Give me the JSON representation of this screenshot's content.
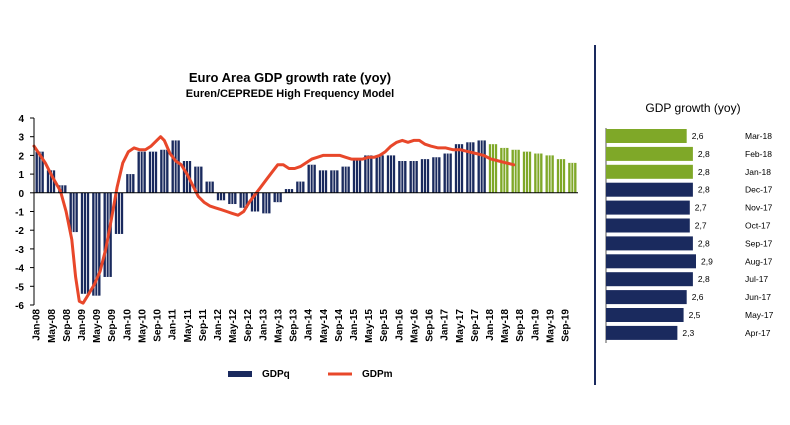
{
  "chart_data": [
    {
      "type": "bar+line",
      "title": "Euro Area GDP growth rate (yoy)",
      "subtitle": "Euren/CEPREDE  High Frequency Model",
      "ylim": [
        -6,
        4
      ],
      "yticks": [
        4,
        3,
        2,
        1,
        0,
        -1,
        -2,
        -3,
        -4,
        -5,
        -6
      ],
      "xtick_labels": [
        "Jan-08",
        "May-08",
        "Sep-08",
        "Jan-09",
        "May-09",
        "Sep-09",
        "Jan-10",
        "May-10",
        "Sep-10",
        "Jan-11",
        "May-11",
        "Sep-11",
        "Jan-12",
        "May-12",
        "Sep-12",
        "Jan-13",
        "May-13",
        "Sep-13",
        "Jan-14",
        "May-14",
        "Sep-14",
        "Jan-15",
        "May-15",
        "Sep-15",
        "Jan-16",
        "May-16",
        "Sep-16",
        "Jan-17",
        "May-17",
        "Sep-17",
        "Jan-18",
        "May-18",
        "Sep-18",
        "Jan-19",
        "May-19",
        "Sep-19"
      ],
      "bar_series_name": "GDPq",
      "line_series_name": "GDPm",
      "bar_color": "#1a2a5e",
      "forecast_bar_color": "#7fa828",
      "line_color": "#e8472a",
      "bars": [
        {
          "x": "2008-Q1",
          "value": 2.2,
          "forecast": false
        },
        {
          "x": "2008-Q2",
          "value": 1.2,
          "forecast": false
        },
        {
          "x": "2008-Q3",
          "value": 0.4,
          "forecast": false
        },
        {
          "x": "2008-Q4",
          "value": -2.1,
          "forecast": false
        },
        {
          "x": "2009-Q1",
          "value": -5.4,
          "forecast": false
        },
        {
          "x": "2009-Q2",
          "value": -5.5,
          "forecast": false
        },
        {
          "x": "2009-Q3",
          "value": -4.5,
          "forecast": false
        },
        {
          "x": "2009-Q4",
          "value": -2.2,
          "forecast": false
        },
        {
          "x": "2010-Q1",
          "value": 1.0,
          "forecast": false
        },
        {
          "x": "2010-Q2",
          "value": 2.2,
          "forecast": false
        },
        {
          "x": "2010-Q3",
          "value": 2.2,
          "forecast": false
        },
        {
          "x": "2010-Q4",
          "value": 2.3,
          "forecast": false
        },
        {
          "x": "2011-Q1",
          "value": 2.8,
          "forecast": false
        },
        {
          "x": "2011-Q2",
          "value": 1.7,
          "forecast": false
        },
        {
          "x": "2011-Q3",
          "value": 1.4,
          "forecast": false
        },
        {
          "x": "2011-Q4",
          "value": 0.6,
          "forecast": false
        },
        {
          "x": "2012-Q1",
          "value": -0.4,
          "forecast": false
        },
        {
          "x": "2012-Q2",
          "value": -0.6,
          "forecast": false
        },
        {
          "x": "2012-Q3",
          "value": -0.8,
          "forecast": false
        },
        {
          "x": "2012-Q4",
          "value": -1.0,
          "forecast": false
        },
        {
          "x": "2013-Q1",
          "value": -1.1,
          "forecast": false
        },
        {
          "x": "2013-Q2",
          "value": -0.5,
          "forecast": false
        },
        {
          "x": "2013-Q3",
          "value": 0.2,
          "forecast": false
        },
        {
          "x": "2013-Q4",
          "value": 0.6,
          "forecast": false
        },
        {
          "x": "2014-Q1",
          "value": 1.5,
          "forecast": false
        },
        {
          "x": "2014-Q2",
          "value": 1.2,
          "forecast": false
        },
        {
          "x": "2014-Q3",
          "value": 1.2,
          "forecast": false
        },
        {
          "x": "2014-Q4",
          "value": 1.4,
          "forecast": false
        },
        {
          "x": "2015-Q1",
          "value": 1.8,
          "forecast": false
        },
        {
          "x": "2015-Q2",
          "value": 2.0,
          "forecast": false
        },
        {
          "x": "2015-Q3",
          "value": 2.0,
          "forecast": false
        },
        {
          "x": "2015-Q4",
          "value": 2.0,
          "forecast": false
        },
        {
          "x": "2016-Q1",
          "value": 1.7,
          "forecast": false
        },
        {
          "x": "2016-Q2",
          "value": 1.7,
          "forecast": false
        },
        {
          "x": "2016-Q3",
          "value": 1.8,
          "forecast": false
        },
        {
          "x": "2016-Q4",
          "value": 1.9,
          "forecast": false
        },
        {
          "x": "2017-Q1",
          "value": 2.1,
          "forecast": false
        },
        {
          "x": "2017-Q2",
          "value": 2.6,
          "forecast": false
        },
        {
          "x": "2017-Q3",
          "value": 2.7,
          "forecast": false
        },
        {
          "x": "2017-Q4",
          "value": 2.8,
          "forecast": false
        },
        {
          "x": "2018-Q1",
          "value": 2.6,
          "forecast": true
        },
        {
          "x": "2018-Q2",
          "value": 2.4,
          "forecast": true
        },
        {
          "x": "2018-Q3",
          "value": 2.3,
          "forecast": true
        },
        {
          "x": "2018-Q4",
          "value": 2.2,
          "forecast": true
        },
        {
          "x": "2019-Q1",
          "value": 2.1,
          "forecast": true
        },
        {
          "x": "2019-Q2",
          "value": 2.0,
          "forecast": true
        },
        {
          "x": "2019-Q3",
          "value": 1.8,
          "forecast": true
        },
        {
          "x": "2019-Q4",
          "value": 1.6,
          "forecast": true
        }
      ],
      "line_points": [
        [
          0,
          2.5
        ],
        [
          3,
          1.6
        ],
        [
          5,
          0.8
        ],
        [
          7,
          0.1
        ],
        [
          8.5,
          -1.0
        ],
        [
          10,
          -2.5
        ],
        [
          11,
          -4.5
        ],
        [
          12,
          -5.8
        ],
        [
          13,
          -5.9
        ],
        [
          14.5,
          -5.4
        ],
        [
          16,
          -4.9
        ],
        [
          17.5,
          -4.2
        ],
        [
          19,
          -3.0
        ],
        [
          20.5,
          -1.4
        ],
        [
          22,
          0.3
        ],
        [
          23.5,
          1.6
        ],
        [
          25,
          2.2
        ],
        [
          26.5,
          2.4
        ],
        [
          28,
          2.3
        ],
        [
          29.5,
          2.3
        ],
        [
          31,
          2.5
        ],
        [
          32.5,
          2.8
        ],
        [
          33.5,
          3.0
        ],
        [
          34.5,
          2.8
        ],
        [
          36,
          2.1
        ],
        [
          37.5,
          1.7
        ],
        [
          39,
          1.5
        ],
        [
          40.5,
          1.0
        ],
        [
          42,
          0.4
        ],
        [
          43.5,
          -0.2
        ],
        [
          45,
          -0.5
        ],
        [
          46.5,
          -0.7
        ],
        [
          48,
          -0.8
        ],
        [
          49.5,
          -0.9
        ],
        [
          51,
          -1.0
        ],
        [
          52.5,
          -1.1
        ],
        [
          54,
          -1.2
        ],
        [
          55.5,
          -1.0
        ],
        [
          57,
          -0.5
        ],
        [
          58.5,
          -0.1
        ],
        [
          60,
          0.3
        ],
        [
          61.5,
          0.7
        ],
        [
          63,
          1.1
        ],
        [
          64.5,
          1.5
        ],
        [
          66,
          1.5
        ],
        [
          67.5,
          1.3
        ],
        [
          69,
          1.3
        ],
        [
          70.5,
          1.4
        ],
        [
          72,
          1.6
        ],
        [
          73.5,
          1.8
        ],
        [
          75,
          1.9
        ],
        [
          76.5,
          2.0
        ],
        [
          78,
          2.0
        ],
        [
          79.5,
          2.0
        ],
        [
          81,
          2.0
        ],
        [
          82.5,
          1.9
        ],
        [
          84,
          1.8
        ],
        [
          85.5,
          1.8
        ],
        [
          87,
          1.8
        ],
        [
          88.5,
          1.9
        ],
        [
          90,
          1.9
        ],
        [
          91.5,
          2.0
        ],
        [
          93,
          2.2
        ],
        [
          94.5,
          2.5
        ],
        [
          96,
          2.7
        ],
        [
          97.5,
          2.8
        ],
        [
          99,
          2.7
        ],
        [
          100.5,
          2.8
        ],
        [
          102,
          2.8
        ],
        [
          103.5,
          2.6
        ],
        [
          105,
          2.5
        ],
        [
          107,
          2.4
        ],
        [
          109,
          2.4
        ],
        [
          111,
          2.3
        ],
        [
          113,
          2.3
        ],
        [
          115,
          2.2
        ],
        [
          117,
          2.1
        ],
        [
          119,
          2.0
        ],
        [
          121,
          1.8
        ],
        [
          123,
          1.7
        ],
        [
          125,
          1.6
        ],
        [
          127,
          1.5
        ]
      ]
    },
    {
      "type": "bar",
      "orientation": "horizontal",
      "title": "GDP growth (yoy)",
      "categories": [
        "Mar-18",
        "Feb-18",
        "Jan-18",
        "Dec-17",
        "Nov-17",
        "Oct-17",
        "Sep-17",
        "Aug-17",
        "Jul-17",
        "Jun-17",
        "May-17",
        "Apr-17"
      ],
      "values": [
        2.6,
        2.8,
        2.8,
        2.8,
        2.7,
        2.7,
        2.8,
        2.9,
        2.8,
        2.6,
        2.5,
        2.3
      ],
      "value_labels": [
        "2,6",
        "2,8",
        "2,8",
        "2,8",
        "2,7",
        "2,7",
        "2,8",
        "2,9",
        "2,8",
        "2,6",
        "2,5",
        "2,3"
      ],
      "forecast": [
        true,
        true,
        true,
        false,
        false,
        false,
        false,
        false,
        false,
        false,
        false,
        false
      ],
      "forecast_color": "#7fa828",
      "actual_color": "#1a2a5e"
    }
  ]
}
